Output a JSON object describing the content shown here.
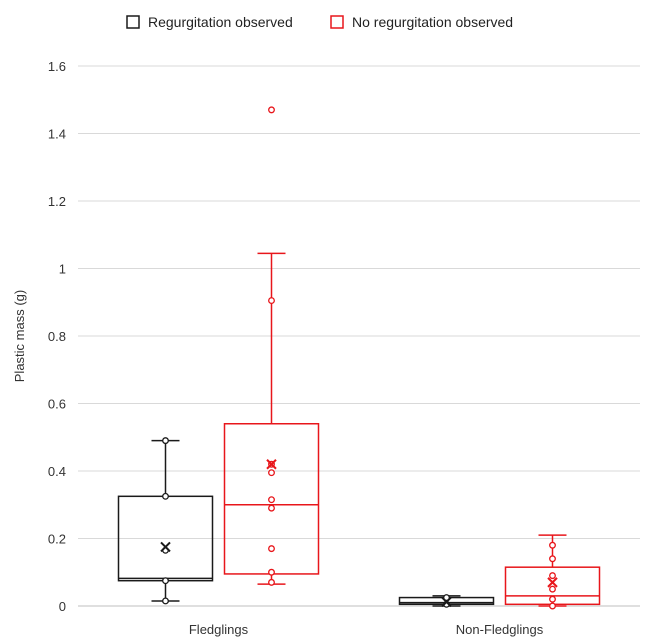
{
  "chart_data": {
    "type": "boxplot",
    "ylabel": "Plastic mass (g)",
    "xlabel": "",
    "ylim": [
      0,
      1.6
    ],
    "yticks": [
      0,
      0.2,
      0.4,
      0.6,
      0.8,
      1,
      1.2,
      1.4,
      1.6
    ],
    "ytick_labels": [
      "0",
      "0.2",
      "0.4",
      "0.6",
      "0.8",
      "1",
      "1.2",
      "1.4",
      "1.6"
    ],
    "categories": [
      "Fledglings",
      "Non-Fledglings"
    ],
    "grid": true,
    "legend_position": "top",
    "series": [
      {
        "name": "Regurgitation observed",
        "color": "#1a1a1a",
        "boxes": [
          {
            "min": 0.015,
            "q1": 0.075,
            "median": 0.082,
            "q3": 0.325,
            "max": 0.49,
            "mean": 0.175,
            "points": [
              0.015,
              0.075,
              0.165,
              0.325,
              0.49
            ]
          },
          {
            "min": 0.0,
            "q1": 0.005,
            "median": 0.01,
            "q3": 0.025,
            "max": 0.03,
            "mean": 0.012,
            "points": [
              0.005,
              0.025
            ]
          }
        ]
      },
      {
        "name": "No regurgitation observed",
        "color": "#e8161b",
        "boxes": [
          {
            "min": 0.065,
            "q1": 0.095,
            "median": 0.3,
            "q3": 0.54,
            "max": 1.045,
            "mean": 0.42,
            "points": [
              0.07,
              0.1,
              0.17,
              0.29,
              0.315,
              0.395,
              0.42,
              0.905,
              1.47
            ]
          },
          {
            "min": 0.0,
            "q1": 0.005,
            "median": 0.03,
            "q3": 0.115,
            "max": 0.21,
            "mean": 0.07,
            "points": [
              0.0,
              0.02,
              0.05,
              0.09,
              0.14,
              0.18
            ]
          }
        ]
      }
    ]
  }
}
